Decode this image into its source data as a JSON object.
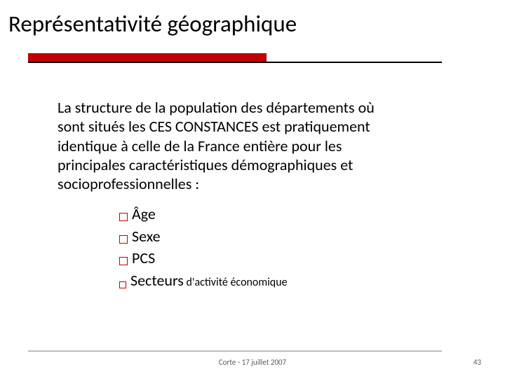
{
  "slide": {
    "title": "Représentativité géographique",
    "accent_bar_color": "#c00000",
    "paragraph": "La structure de la population des départements où sont situés les CES CONSTANCES est pratiquement identique à celle de la France entière pour les principales caractéristiques démographiques et socioprofessionnelles :",
    "bullets": [
      {
        "label": "Âge",
        "size": "normal"
      },
      {
        "label": "Sexe",
        "size": "normal"
      },
      {
        "label": "PCS",
        "size": "normal"
      },
      {
        "label_main": "Secteurs",
        "label_sub": " d'activité économique",
        "size": "small"
      }
    ],
    "footer": {
      "center": "Corte - 17 juillet 2007",
      "page_number": "43"
    },
    "colors": {
      "accent": "#c00000",
      "text": "#000000",
      "footer_text": "#595959",
      "footer_line": "#7f7f7f",
      "background": "#ffffff"
    },
    "fontsizes": {
      "title": 33,
      "body": 22,
      "sub": 16,
      "footer": 11
    }
  }
}
